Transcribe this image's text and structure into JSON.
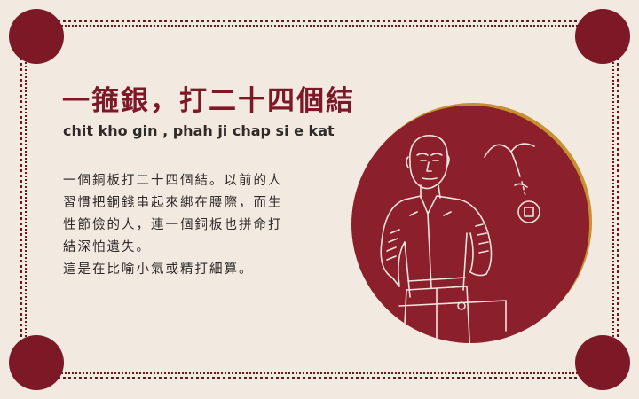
{
  "title": "一箍銀，打二十四個結",
  "romanization": "chit kho gin , phah ji chap si e kat",
  "body": {
    "lines": [
      "一個銅板打二十四個結。以前的人",
      "習慣把銅錢串起來綁在腰際，而生",
      "性節儉的人，連一個銅板也拼命打",
      "結深怕遺失。",
      "這是在比喻小氣或精打細算。"
    ]
  },
  "colors": {
    "background": "#f2e9e1",
    "accent": "#7d1827",
    "circle": "#8b1f2b",
    "text": "#2e2a28"
  }
}
